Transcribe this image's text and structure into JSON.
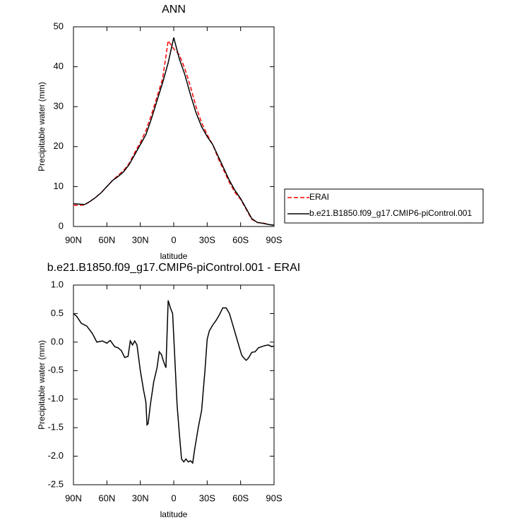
{
  "chart_data": [
    {
      "type": "line",
      "title": "ANN",
      "ylabel": "Precipitable water (mm)",
      "xlabel": "latitude",
      "x": [
        90,
        85,
        80,
        75,
        70,
        65,
        60,
        55,
        50,
        45,
        40,
        35,
        30,
        25,
        20,
        15,
        10,
        5,
        0,
        -5,
        -10,
        -15,
        -20,
        -25,
        -30,
        -35,
        -40,
        -45,
        -50,
        -55,
        -60,
        -65,
        -70,
        -75,
        -80,
        -85,
        -90
      ],
      "series": [
        {
          "name": "ERAI",
          "color": "#ff0000",
          "line_style": "dashed",
          "values": [
            5.3,
            5.3,
            5.4,
            6.3,
            7.3,
            8.5,
            10,
            11.5,
            12.8,
            14,
            15.8,
            18.5,
            21,
            24,
            28,
            32.5,
            37,
            46.5,
            44.5,
            43,
            39.5,
            35,
            30,
            26,
            23,
            20.5,
            17,
            14,
            11,
            8.5,
            6.8,
            4.3,
            1.8,
            1,
            0.9,
            0.5,
            0.3
          ]
        },
        {
          "name": "b.e21.B1850.f09_g17.CMIP6-piControl.001",
          "color": "#000000",
          "line_style": "solid",
          "values": [
            5.7,
            5.6,
            5.5,
            6.3,
            7.3,
            8.5,
            10,
            11.5,
            12.5,
            13.7,
            15.5,
            18,
            20.5,
            23,
            27,
            31.5,
            36,
            41,
            47.3,
            42,
            38,
            33,
            28.5,
            25,
            22.5,
            20.5,
            17.5,
            14.5,
            11.5,
            9,
            7,
            4.5,
            2,
            1,
            0.8,
            0.5,
            0.3
          ]
        }
      ],
      "xlim": [
        90,
        -90
      ],
      "xticks": [
        {
          "value": 90,
          "label": "90N"
        },
        {
          "value": 60,
          "label": "60N"
        },
        {
          "value": 30,
          "label": "30N"
        },
        0,
        {
          "value": -30,
          "label": "30S"
        },
        {
          "value": -60,
          "label": "60S"
        },
        {
          "value": -90,
          "label": "90S"
        }
      ],
      "ylim": [
        0,
        50
      ],
      "yticks": [
        0,
        10,
        20,
        30,
        40,
        50
      ],
      "legend": "right"
    },
    {
      "type": "line",
      "title": "b.e21.B1850.f09_g17.CMIP6-piControl.001 - ERAI",
      "ylabel": "Precipitable water (mm)",
      "xlabel": "latitude",
      "x": [
        90,
        87,
        83,
        78,
        73,
        69,
        64,
        60,
        57,
        53,
        50,
        47,
        44,
        41,
        39,
        37,
        35,
        33,
        30,
        27,
        25,
        24,
        23,
        21,
        18,
        15,
        13,
        11,
        9,
        7,
        5,
        3,
        1,
        -1,
        -3,
        -5,
        -7,
        -9,
        -11,
        -13,
        -15,
        -17,
        -19,
        -22,
        -25,
        -28,
        -30,
        -32,
        -35,
        -38,
        -41,
        -44,
        -47,
        -50,
        -53,
        -56,
        -59,
        -61,
        -63,
        -65,
        -67,
        -70,
        -73,
        -76,
        -79,
        -82,
        -85,
        -88,
        -90
      ],
      "series": [
        {
          "color": "#000000",
          "line_style": "solid",
          "values": [
            0.5,
            0.45,
            0.33,
            0.28,
            0.15,
            0.0,
            0.02,
            -0.02,
            0.03,
            -0.08,
            -0.1,
            -0.15,
            -0.27,
            -0.25,
            0.02,
            -0.05,
            0.02,
            -0.05,
            -0.5,
            -0.85,
            -1.05,
            -1.45,
            -1.43,
            -1.1,
            -0.7,
            -0.45,
            -0.17,
            -0.22,
            -0.35,
            -0.45,
            0.73,
            0.6,
            0.5,
            -0.3,
            -1.1,
            -1.6,
            -2.05,
            -2.1,
            -2.05,
            -2.1,
            -2.08,
            -2.12,
            -1.85,
            -1.5,
            -1.2,
            -0.5,
            0.05,
            0.2,
            0.3,
            0.38,
            0.48,
            0.6,
            0.6,
            0.5,
            0.3,
            0.1,
            -0.1,
            -0.23,
            -0.28,
            -0.32,
            -0.28,
            -0.18,
            -0.17,
            -0.1,
            -0.08,
            -0.06,
            -0.05,
            -0.08,
            -0.07
          ]
        }
      ],
      "xlim": [
        90,
        -90
      ],
      "xticks": [
        {
          "value": 90,
          "label": "90N"
        },
        {
          "value": 60,
          "label": "60N"
        },
        {
          "value": 30,
          "label": "30N"
        },
        0,
        {
          "value": -30,
          "label": "30S"
        },
        {
          "value": -60,
          "label": "60S"
        },
        {
          "value": -90,
          "label": "90S"
        }
      ],
      "ylim": [
        -2.5,
        1.0
      ],
      "yticks": [
        -2.5,
        {
          "value": -2.0,
          "label": "-2.0"
        },
        -1.5,
        {
          "value": -1.0,
          "label": "-1.0"
        },
        -0.5,
        {
          "value": 0.0,
          "label": "0.0"
        },
        0.5,
        {
          "value": 1.0,
          "label": "1.0"
        }
      ]
    }
  ]
}
